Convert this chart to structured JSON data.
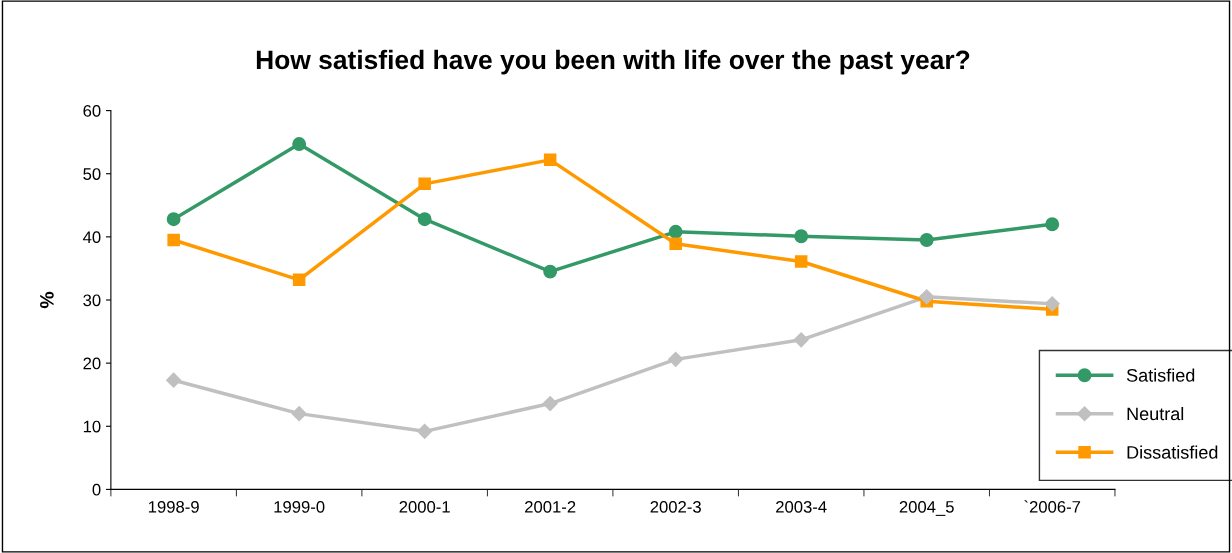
{
  "chart_data": {
    "type": "line",
    "title": "How satisfied have you been with life over the past year?",
    "ylabel": "%",
    "categories": [
      "1998-9",
      "1999-0",
      "2000-1",
      "2001-2",
      "2002-3",
      "2003-4",
      "2004_5",
      "`2006-7"
    ],
    "series": [
      {
        "name": "Satisfied",
        "color": "#339966",
        "marker": "circle",
        "values": [
          42.8,
          54.7,
          42.8,
          34.5,
          40.8,
          40.1,
          39.5,
          42.0
        ]
      },
      {
        "name": "Neutral",
        "color": "#c0c0c0",
        "marker": "diamond",
        "values": [
          17.3,
          12.0,
          9.2,
          13.6,
          20.6,
          23.7,
          30.5,
          29.4
        ]
      },
      {
        "name": "Dissatisfied",
        "color": "#ff9900",
        "marker": "square",
        "values": [
          39.5,
          33.2,
          48.4,
          52.2,
          38.9,
          36.1,
          29.8,
          28.5
        ]
      }
    ],
    "ylim": [
      0,
      60
    ],
    "yticks": [
      0,
      10,
      20,
      30,
      40,
      50,
      60
    ],
    "grid": false,
    "legend": "right",
    "line_style": "solid"
  }
}
